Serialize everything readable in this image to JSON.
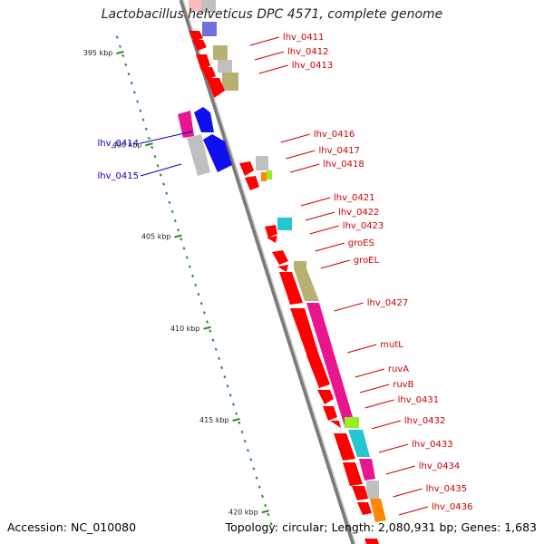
{
  "title": "Lactobacillus helveticus DPC 4571, complete genome",
  "accession": "Accession: NC_010080",
  "summary": "Topology: circular; Length: 2,080,931 bp; Genes: 1,683",
  "colors": {
    "backbone": "#7a7a7a",
    "tick_dots": "#2e8b2e",
    "forward_label": "#cc0000",
    "reverse_label": "#0000cc",
    "gene_red": "#ff0000",
    "magenta": "#e8158c",
    "olive": "#b8b070",
    "grey": "#c0c0c0",
    "cyan": "#22c7cf",
    "blue": "#1010ee",
    "lime": "#99ee22",
    "orange": "#ff8800"
  },
  "scale_labels": [
    "395 kbp",
    "400 kbp",
    "405 kbp",
    "410 kbp",
    "415 kbp",
    "420 kbp"
  ],
  "forward_genes": [
    {
      "label": "lhv_0411",
      "kb": 393.1
    },
    {
      "label": "lhv_0412",
      "kb": 393.7
    },
    {
      "label": "lhv_0413",
      "kb": 394.3
    },
    {
      "label": "lhv_0416",
      "kb": 399.5
    },
    {
      "label": "lhv_0417",
      "kb": 400.0
    },
    {
      "label": "lhv_0418",
      "kb": 400.5
    },
    {
      "label": "lhv_0421",
      "kb": 402.7
    },
    {
      "label": "lhv_0422",
      "kb": 403.3
    },
    {
      "label": "lhv_0423",
      "kb": 403.9
    },
    {
      "label": "groES",
      "kb": 404.6
    },
    {
      "label": "groEL",
      "kb": 405.4
    },
    {
      "label": "lhv_0427",
      "kb": 408.0
    },
    {
      "label": "mutL",
      "kb": 410.5
    },
    {
      "label": "ruvA",
      "kb": 411.7
    },
    {
      "label": "ruvB",
      "kb": 412.3
    },
    {
      "label": "lhv_0431",
      "kb": 413.0
    },
    {
      "label": "lhv_0432",
      "kb": 414.0
    },
    {
      "label": "lhv_0433",
      "kb": 415.4
    },
    {
      "label": "lhv_0434",
      "kb": 416.5
    },
    {
      "label": "lhv_0435",
      "kb": 417.4
    },
    {
      "label": "lhv_0436",
      "kb": 418.2
    }
  ],
  "reverse_genes": [
    {
      "label": "lhv_0414",
      "kb": 398.0
    },
    {
      "label": "lhv_0415",
      "kb": 399.3
    }
  ]
}
